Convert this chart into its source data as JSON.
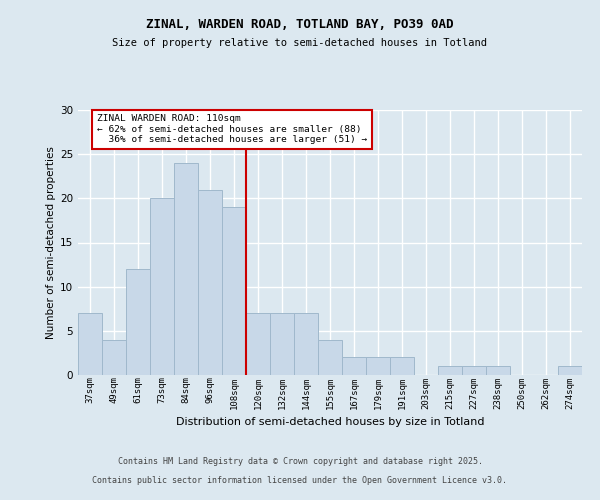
{
  "title1": "ZINAL, WARDEN ROAD, TOTLAND BAY, PO39 0AD",
  "title2": "Size of property relative to semi-detached houses in Totland",
  "xlabel": "Distribution of semi-detached houses by size in Totland",
  "ylabel": "Number of semi-detached properties",
  "footer1": "Contains HM Land Registry data © Crown copyright and database right 2025.",
  "footer2": "Contains public sector information licensed under the Open Government Licence v3.0.",
  "bin_labels": [
    "37sqm",
    "49sqm",
    "61sqm",
    "73sqm",
    "84sqm",
    "96sqm",
    "108sqm",
    "120sqm",
    "132sqm",
    "144sqm",
    "155sqm",
    "167sqm",
    "179sqm",
    "191sqm",
    "203sqm",
    "215sqm",
    "227sqm",
    "238sqm",
    "250sqm",
    "262sqm",
    "274sqm"
  ],
  "bar_values": [
    7,
    4,
    12,
    20,
    24,
    21,
    19,
    7,
    7,
    7,
    4,
    2,
    2,
    2,
    0,
    1,
    1,
    1,
    0,
    0,
    1
  ],
  "bar_color": "#c8d8e8",
  "bar_edge_color": "#a0b8cc",
  "property_line_x": 6.5,
  "property_sqm": 110,
  "property_label": "ZINAL WARDEN ROAD: 110sqm",
  "pct_smaller": 62,
  "pct_smaller_count": 88,
  "pct_larger": 36,
  "pct_larger_count": 51,
  "annotation_box_color": "#ffffff",
  "annotation_box_edge": "#cc0000",
  "vline_color": "#cc0000",
  "ylim": [
    0,
    30
  ],
  "yticks": [
    0,
    5,
    10,
    15,
    20,
    25,
    30
  ],
  "background_color": "#dce8f0",
  "grid_color": "#ffffff"
}
